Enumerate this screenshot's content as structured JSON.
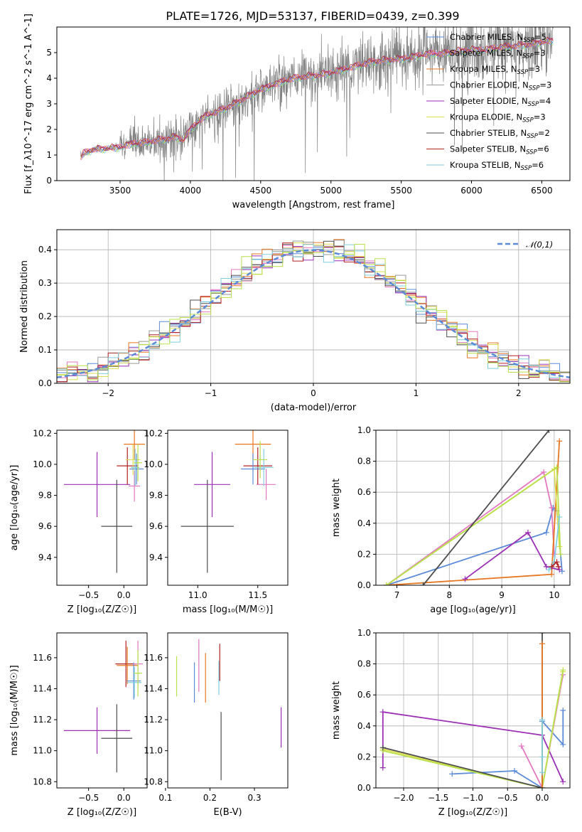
{
  "figure_title": "PLATE=1726, MJD=53137, FIBERID=0439, z=0.399",
  "colors": {
    "chabrier_miles": "#5b8ad8",
    "salpeter_miles": "#e377c2",
    "kroupa_miles": "#e87722",
    "chabrier_elodie": "#999999",
    "salpeter_elodie": "#9b30b5",
    "kroupa_elodie": "#dede55",
    "chabrier_stelib": "#4d4d4d",
    "salpeter_stelib": "#b22222",
    "kroupa_stelib": "#7ecfe0",
    "lime": "#b7e04a",
    "normal": "#5b8ad8"
  },
  "chart_data": [
    {
      "id": "spectrum",
      "type": "line",
      "xlabel": "wavelength [Angstrom, rest frame]",
      "ylabel": "Flux [f_λ10^-17 erg cm^-2 s^-1 A^-1]",
      "xlim": [
        3050,
        6700
      ],
      "ylim": [
        0,
        6
      ],
      "xticks": [
        3500,
        4000,
        4500,
        5000,
        5500,
        6000,
        6500
      ],
      "yticks": [
        0,
        1,
        2,
        3,
        4,
        5
      ],
      "legend_position": "top-right",
      "data_start": 3220,
      "continuum": [
        [
          3220,
          0.9
        ],
        [
          3240,
          1.05
        ],
        [
          3300,
          1.2
        ],
        [
          3400,
          1.25
        ],
        [
          3500,
          1.3
        ],
        [
          3600,
          1.45
        ],
        [
          3700,
          1.5
        ],
        [
          3800,
          1.6
        ],
        [
          3900,
          1.7
        ],
        [
          3950,
          1.55
        ],
        [
          4000,
          2.0
        ],
        [
          4100,
          2.5
        ],
        [
          4200,
          2.7
        ],
        [
          4300,
          2.95
        ],
        [
          4400,
          3.25
        ],
        [
          4500,
          3.55
        ],
        [
          4600,
          3.75
        ],
        [
          4700,
          3.95
        ],
        [
          4800,
          4.05
        ],
        [
          4900,
          4.1
        ],
        [
          5000,
          4.2
        ],
        [
          5100,
          4.35
        ],
        [
          5200,
          4.5
        ],
        [
          5300,
          4.65
        ],
        [
          5400,
          4.7
        ],
        [
          5500,
          4.75
        ],
        [
          5600,
          4.85
        ],
        [
          5700,
          4.95
        ],
        [
          5800,
          4.95
        ],
        [
          5900,
          5.05
        ],
        [
          6000,
          5.1
        ],
        [
          6100,
          5.1
        ],
        [
          6200,
          5.2
        ],
        [
          6300,
          5.25
        ],
        [
          6400,
          5.3
        ],
        [
          6500,
          5.4
        ],
        [
          6550,
          5.45
        ]
      ],
      "legend": [
        {
          "label_main": "Chabrier MILES, N",
          "label_sub": "SSP",
          "label_end": "=5",
          "color_key": "chabrier_miles"
        },
        {
          "label_main": "Salpeter MILES, N",
          "label_sub": "SSP",
          "label_end": "=3",
          "color_key": "salpeter_miles"
        },
        {
          "label_main": "Kroupa MILES, N",
          "label_sub": "SSP",
          "label_end": "=3",
          "color_key": "kroupa_miles"
        },
        {
          "label_main": "Chabrier ELODIE, N",
          "label_sub": "SSP",
          "label_end": "=3",
          "color_key": "chabrier_elodie"
        },
        {
          "label_main": "Salpeter ELODIE, N",
          "label_sub": "SSP",
          "label_end": "=4",
          "color_key": "salpeter_elodie"
        },
        {
          "label_main": "Kroupa ELODIE, N",
          "label_sub": "SSP",
          "label_end": "=3",
          "color_key": "kroupa_elodie"
        },
        {
          "label_main": "Chabrier STELIB, N",
          "label_sub": "SSP",
          "label_end": "=2",
          "color_key": "chabrier_stelib"
        },
        {
          "label_main": "Salpeter STELIB, N",
          "label_sub": "SSP",
          "label_end": "=6",
          "color_key": "salpeter_stelib"
        },
        {
          "label_main": "Kroupa STELIB, N",
          "label_sub": "SSP",
          "label_end": "=6",
          "color_key": "kroupa_stelib"
        }
      ]
    },
    {
      "id": "residuals",
      "type": "histogram",
      "xlabel": "(data-model)/error",
      "ylabel": "Normed distribution",
      "xlim": [
        -2.5,
        2.5
      ],
      "ylim": [
        0,
        0.46
      ],
      "xticks": [
        -2,
        -1,
        0,
        1,
        2
      ],
      "yticks": [
        0.0,
        0.1,
        0.2,
        0.3,
        0.4
      ],
      "bin_width": 0.1,
      "reference_label": "𝒩(0,1)",
      "legend_position": "top-right",
      "reference_curve": "normal density, mean 0, sigma 1",
      "grid": true
    },
    {
      "id": "age_vs_Z",
      "type": "scatter",
      "xlabel": "Z [log₁₀(Z/Z☉)]",
      "ylabel": "age  [log₁₀(age/yr)]",
      "xlim": [
        -0.95,
        0.33
      ],
      "ylim": [
        9.22,
        10.22
      ],
      "xticks": [
        -0.5,
        0.0
      ],
      "yticks": [
        9.4,
        9.6,
        9.8,
        10.0,
        10.2
      ],
      "points": [
        {
          "x": -0.38,
          "xerr": 0.47,
          "y": 9.87,
          "yerr": 0.21,
          "color_key": "salpeter_elodie"
        },
        {
          "x": -0.1,
          "xerr": 0.22,
          "y": 9.6,
          "yerr": 0.3,
          "color_key": "chabrier_stelib"
        },
        {
          "x": 0.15,
          "xerr": 0.15,
          "y": 10.13,
          "yerr": 0.1,
          "color_key": "kroupa_miles"
        },
        {
          "x": 0.05,
          "xerr": 0.15,
          "y": 9.99,
          "yerr": 0.12,
          "color_key": "salpeter_stelib"
        },
        {
          "x": 0.13,
          "xerr": 0.1,
          "y": 10.03,
          "yerr": 0.1,
          "color_key": "kroupa_elodie"
        },
        {
          "x": 0.18,
          "xerr": 0.1,
          "y": 9.97,
          "yerr": 0.1,
          "color_key": "chabrier_miles"
        },
        {
          "x": 0.15,
          "xerr": 0.08,
          "y": 9.86,
          "yerr": 0.1,
          "color_key": "salpeter_miles"
        },
        {
          "x": 0.16,
          "xerr": 0.06,
          "y": 9.98,
          "yerr": 0.12,
          "color_key": "kroupa_stelib"
        },
        {
          "x": 0.2,
          "xerr": 0.06,
          "y": 10.01,
          "yerr": 0.12,
          "color_key": "lime"
        }
      ]
    },
    {
      "id": "age_vs_mass",
      "type": "scatter",
      "xlabel": "mass [log₁₀(M/M☉)]",
      "ylabel": "",
      "xlim": [
        10.75,
        11.75
      ],
      "ylim": [
        9.22,
        10.22
      ],
      "xticks": [
        11.0,
        11.5
      ],
      "yticks": [
        9.4,
        9.6,
        9.8,
        10.0,
        10.2
      ],
      "points": [
        {
          "x": 11.08,
          "xerr": 0.22,
          "y": 9.6,
          "yerr": 0.3,
          "color_key": "chabrier_stelib"
        },
        {
          "x": 11.12,
          "xerr": 0.15,
          "y": 9.87,
          "yerr": 0.21,
          "color_key": "salpeter_elodie"
        },
        {
          "x": 11.46,
          "xerr": 0.15,
          "y": 10.13,
          "yerr": 0.1,
          "color_key": "kroupa_miles"
        },
        {
          "x": 11.57,
          "xerr": 0.08,
          "y": 9.87,
          "yerr": 0.1,
          "color_key": "salpeter_miles"
        },
        {
          "x": 11.5,
          "xerr": 0.12,
          "y": 9.99,
          "yerr": 0.12,
          "color_key": "salpeter_stelib"
        },
        {
          "x": 11.46,
          "xerr": 0.1,
          "y": 9.97,
          "yerr": 0.1,
          "color_key": "chabrier_miles"
        },
        {
          "x": 11.55,
          "xerr": 0.08,
          "y": 9.98,
          "yerr": 0.12,
          "color_key": "kroupa_stelib"
        },
        {
          "x": 11.52,
          "xerr": 0.06,
          "y": 10.03,
          "yerr": 0.12,
          "color_key": "lime"
        }
      ]
    },
    {
      "id": "weight_vs_age",
      "type": "line",
      "xlabel": "age  [log₁₀(age/yr)]",
      "ylabel": "mass weight",
      "xlim": [
        6.6,
        10.3
      ],
      "ylim": [
        0,
        1
      ],
      "xticks": [
        7,
        8,
        9,
        10
      ],
      "yticks": [
        0.0,
        0.2,
        0.4,
        0.6,
        0.8,
        1.0
      ],
      "grid": true,
      "series": [
        {
          "color_key": "chabrier_miles",
          "points": [
            [
              6.8,
              0.0
            ],
            [
              9.85,
              0.34
            ],
            [
              9.98,
              0.5
            ],
            [
              10.05,
              0.48
            ],
            [
              10.15,
              0.09
            ]
          ]
        },
        {
          "color_key": "salpeter_miles",
          "points": [
            [
              6.8,
              0.0
            ],
            [
              9.8,
              0.73
            ],
            [
              9.95,
              0.5
            ],
            [
              10.0,
              0.2
            ]
          ]
        },
        {
          "color_key": "kroupa_miles",
          "points": [
            [
              6.8,
              0.0
            ],
            [
              9.95,
              0.07
            ],
            [
              10.1,
              0.93
            ]
          ]
        },
        {
          "color_key": "salpeter_elodie",
          "points": [
            [
              8.3,
              0.04
            ],
            [
              9.5,
              0.34
            ],
            [
              9.85,
              0.12
            ],
            [
              10.1,
              0.1
            ]
          ]
        },
        {
          "color_key": "kroupa_elodie",
          "points": [
            [
              6.8,
              0.0
            ],
            [
              10.0,
              0.75
            ],
            [
              10.1,
              0.25
            ]
          ]
        },
        {
          "color_key": "lime",
          "points": [
            [
              6.8,
              0.0
            ],
            [
              10.05,
              0.76
            ],
            [
              10.12,
              0.2
            ]
          ]
        },
        {
          "color_key": "chabrier_stelib",
          "points": [
            [
              7.5,
              0.0
            ],
            [
              9.9,
              1.0
            ]
          ]
        },
        {
          "color_key": "kroupa_stelib",
          "points": [
            [
              9.9,
              0.1
            ],
            [
              10.0,
              0.15
            ],
            [
              10.1,
              0.44
            ]
          ]
        },
        {
          "color_key": "salpeter_stelib",
          "points": [
            [
              9.95,
              0.12
            ],
            [
              10.05,
              0.15
            ],
            [
              10.08,
              0.12
            ]
          ]
        }
      ]
    },
    {
      "id": "mass_vs_Z",
      "type": "scatter",
      "xlabel": "Z [log₁₀(Z/Z☉)]",
      "ylabel": "mass [log₁₀(M/M☉)]",
      "xlim": [
        -0.95,
        0.33
      ],
      "ylim": [
        10.76,
        11.76
      ],
      "xticks": [
        -0.5,
        0.0
      ],
      "yticks": [
        10.8,
        11.0,
        11.2,
        11.4,
        11.6
      ],
      "points": [
        {
          "x": -0.38,
          "xerr": 0.47,
          "y": 11.13,
          "yerr": 0.15,
          "color_key": "salpeter_elodie"
        },
        {
          "x": -0.1,
          "xerr": 0.22,
          "y": 11.08,
          "yerr": 0.22,
          "color_key": "chabrier_stelib"
        },
        {
          "x": 0.03,
          "xerr": 0.15,
          "y": 11.56,
          "yerr": 0.15,
          "color_key": "salpeter_stelib"
        },
        {
          "x": 0.05,
          "xerr": 0.15,
          "y": 11.55,
          "yerr": 0.12,
          "color_key": "kroupa_miles"
        },
        {
          "x": 0.14,
          "xerr": 0.1,
          "y": 11.45,
          "yerr": 0.12,
          "color_key": "chabrier_miles"
        },
        {
          "x": 0.2,
          "xerr": 0.07,
          "y": 11.56,
          "yerr": 0.15,
          "color_key": "salpeter_miles"
        },
        {
          "x": 0.15,
          "xerr": 0.1,
          "y": 11.44,
          "yerr": 0.1,
          "color_key": "kroupa_stelib"
        },
        {
          "x": 0.2,
          "xerr": 0.06,
          "y": 11.5,
          "yerr": 0.15,
          "color_key": "lime"
        }
      ]
    },
    {
      "id": "mass_vs_ebv",
      "type": "scatter",
      "xlabel": "E(B-V)",
      "ylabel": "",
      "xlim": [
        0.105,
        0.375
      ],
      "ylim": [
        10.76,
        11.76
      ],
      "xticks": [
        0.1,
        0.2,
        0.3
      ],
      "yticks": [
        10.8,
        11.0,
        11.2,
        11.4,
        11.6
      ],
      "points": [
        {
          "x": 0.125,
          "xerr": 0.0,
          "y": 11.48,
          "yerr": 0.13,
          "color_key": "lime"
        },
        {
          "x": 0.165,
          "xerr": 0.0,
          "y": 11.44,
          "yerr": 0.13,
          "color_key": "chabrier_miles"
        },
        {
          "x": 0.175,
          "xerr": 0.0,
          "y": 11.55,
          "yerr": 0.17,
          "color_key": "salpeter_miles"
        },
        {
          "x": 0.19,
          "xerr": 0.0,
          "y": 11.47,
          "yerr": 0.16,
          "color_key": "kroupa_miles"
        },
        {
          "x": 0.22,
          "xerr": 0.0,
          "y": 11.47,
          "yerr": 0.11,
          "color_key": "kroupa_stelib"
        },
        {
          "x": 0.222,
          "xerr": 0.0,
          "y": 11.57,
          "yerr": 0.12,
          "color_key": "salpeter_stelib"
        },
        {
          "x": 0.225,
          "xerr": 0.0,
          "y": 11.03,
          "yerr": 0.22,
          "color_key": "chabrier_stelib"
        },
        {
          "x": 0.36,
          "xerr": 0.0,
          "y": 11.15,
          "yerr": 0.13,
          "color_key": "salpeter_elodie"
        }
      ]
    },
    {
      "id": "weight_vs_Z",
      "type": "line",
      "xlabel": "Z [log₁₀(Z/Z☉)]",
      "ylabel": "mass weight",
      "xlim": [
        -2.4,
        0.4
      ],
      "ylim": [
        0,
        1
      ],
      "xticks": [
        -2.0,
        -1.5,
        -1.0,
        -0.5,
        0.0
      ],
      "yticks": [
        0.0,
        0.2,
        0.4,
        0.6,
        0.8,
        1.0
      ],
      "grid": true,
      "series": [
        {
          "color_key": "salpeter_elodie",
          "points": [
            [
              -2.3,
              0.13
            ],
            [
              -2.3,
              0.49
            ],
            [
              0.0,
              0.34
            ],
            [
              0.3,
              0.04
            ]
          ]
        },
        {
          "color_key": "chabrier_miles",
          "points": [
            [
              -1.3,
              0.09
            ],
            [
              -0.4,
              0.11
            ],
            [
              0.0,
              0.0
            ],
            [
              0.0,
              0.43
            ],
            [
              0.3,
              0.28
            ],
            [
              0.3,
              0.5
            ]
          ]
        },
        {
          "color_key": "salpeter_miles",
          "points": [
            [
              -0.3,
              0.27
            ],
            [
              0.0,
              0.0
            ],
            [
              0.3,
              0.73
            ]
          ]
        },
        {
          "color_key": "kroupa_elodie",
          "points": [
            [
              -2.3,
              0.25
            ],
            [
              0.0,
              0.0
            ],
            [
              0.3,
              0.75
            ]
          ]
        },
        {
          "color_key": "lime",
          "points": [
            [
              -2.3,
              0.24
            ],
            [
              0.0,
              0.0
            ],
            [
              0.3,
              0.76
            ]
          ]
        },
        {
          "color_key": "chabrier_stelib",
          "points": [
            [
              -2.3,
              0.26
            ],
            [
              0.0,
              0.0
            ],
            [
              0.0,
              1.0
            ]
          ]
        },
        {
          "color_key": "kroupa_miles",
          "points": [
            [
              0.0,
              0.93
            ],
            [
              0.0,
              0.0
            ]
          ]
        },
        {
          "color_key": "kroupa_stelib",
          "points": [
            [
              0.0,
              0.1
            ],
            [
              0.0,
              0.2
            ],
            [
              0.0,
              0.44
            ]
          ]
        }
      ]
    }
  ]
}
